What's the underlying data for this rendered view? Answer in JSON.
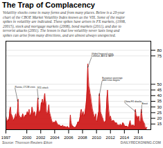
{
  "chart_data": {
    "type": "area",
    "title": "The Trap of Complacency",
    "subtitle": "Volatility shocks come in many forms and from many places. Below is a 20-year\nchart of the CBOE Market Volatility Index known as the VIX. Some of the major\nspikes in volatility are indicated. These spikes have arisen in FX markets, (1998,\n20015), stock and mortgage markets (2008), bond markets (2011), and due to\nterrorist attacks (2001). The lesson is that low volatility never lasts long and\nspikes can arise from many directions, and are almost always unexpected.",
    "source": "Source: Thomson Reuters Eikon",
    "watermark": "DAILYRECKONING.COM",
    "x": [
      1997.0,
      1997.083,
      1997.167,
      1997.25,
      1997.333,
      1997.417,
      1997.5,
      1997.583,
      1997.667,
      1997.75,
      1997.833,
      1997.917,
      1998.0,
      1998.083,
      1998.167,
      1998.25,
      1998.333,
      1998.417,
      1998.5,
      1998.583,
      1998.667,
      1998.75,
      1998.833,
      1998.917,
      1999.0,
      1999.083,
      1999.167,
      1999.25,
      1999.333,
      1999.417,
      1999.5,
      1999.583,
      1999.667,
      1999.75,
      1999.833,
      1999.917,
      2000.0,
      2000.083,
      2000.167,
      2000.25,
      2000.333,
      2000.417,
      2000.5,
      2000.583,
      2000.667,
      2000.75,
      2000.833,
      2000.917,
      2001.0,
      2001.083,
      2001.167,
      2001.25,
      2001.333,
      2001.417,
      2001.5,
      2001.583,
      2001.667,
      2001.75,
      2001.833,
      2001.917,
      2002.0,
      2002.083,
      2002.167,
      2002.25,
      2002.333,
      2002.417,
      2002.5,
      2002.583,
      2002.667,
      2002.75,
      2002.833,
      2002.917,
      2003.0,
      2003.083,
      2003.167,
      2003.25,
      2003.333,
      2003.417,
      2003.5,
      2003.583,
      2003.667,
      2003.75,
      2003.833,
      2003.917,
      2004.0,
      2004.083,
      2004.167,
      2004.25,
      2004.333,
      2004.417,
      2004.5,
      2004.583,
      2004.667,
      2004.75,
      2004.833,
      2004.917,
      2005.0,
      2005.083,
      2005.167,
      2005.25,
      2005.333,
      2005.417,
      2005.5,
      2005.583,
      2005.667,
      2005.75,
      2005.833,
      2005.917,
      2006.0,
      2006.083,
      2006.167,
      2006.25,
      2006.333,
      2006.417,
      2006.5,
      2006.583,
      2006.667,
      2006.75,
      2006.833,
      2006.917,
      2007.0,
      2007.083,
      2007.167,
      2007.25,
      2007.333,
      2007.417,
      2007.5,
      2007.583,
      2007.667,
      2007.75,
      2007.833,
      2007.917,
      2008.0,
      2008.083,
      2008.167,
      2008.25,
      2008.333,
      2008.417,
      2008.5,
      2008.583,
      2008.667,
      2008.75,
      2008.833,
      2008.917,
      2009.0,
      2009.083,
      2009.167,
      2009.25,
      2009.333,
      2009.417,
      2009.5,
      2009.583,
      2009.667,
      2009.75,
      2009.833,
      2009.917,
      2010.0,
      2010.083,
      2010.167,
      2010.25,
      2010.333,
      2010.417,
      2010.5,
      2010.583,
      2010.667,
      2010.75,
      2010.833,
      2010.917,
      2011.0,
      2011.083,
      2011.167,
      2011.25,
      2011.333,
      2011.417,
      2011.5,
      2011.583,
      2011.667,
      2011.75,
      2011.833,
      2011.917,
      2012.0,
      2012.083,
      2012.167,
      2012.25,
      2012.333,
      2012.417,
      2012.5,
      2012.583,
      2012.667,
      2012.75,
      2012.833,
      2012.917,
      2013.0,
      2013.083,
      2013.167,
      2013.25,
      2013.333,
      2013.417,
      2013.5,
      2013.583,
      2013.667,
      2013.75,
      2013.833,
      2013.917,
      2014.0,
      2014.083,
      2014.167,
      2014.25,
      2014.333,
      2014.417,
      2014.5,
      2014.583,
      2014.667,
      2014.75,
      2014.833,
      2014.917,
      2015.0,
      2015.083,
      2015.167,
      2015.25,
      2015.333,
      2015.417,
      2015.5,
      2015.583,
      2015.667,
      2015.75,
      2015.833,
      2015.917,
      2016.0,
      2016.083,
      2016.167,
      2016.25,
      2016.333,
      2016.417,
      2016.5,
      2016.583,
      2016.667,
      2016.75,
      2016.833,
      2016.917,
      2017.0,
      2017.083,
      2017.167,
      2017.25
    ],
    "values": [
      22,
      20,
      18,
      17,
      19,
      18,
      22,
      28,
      30,
      24,
      23,
      22,
      20,
      18,
      19,
      20,
      22,
      24,
      20,
      22,
      26,
      37,
      26,
      22,
      22,
      20,
      21,
      19,
      22,
      24,
      23,
      21,
      20,
      22,
      23,
      22,
      24,
      26,
      25,
      23,
      28,
      24,
      22,
      23,
      25,
      30,
      28,
      24,
      24,
      26,
      25,
      22,
      21,
      24,
      28,
      38,
      30,
      26,
      25,
      26,
      28,
      34,
      33,
      37,
      34,
      32,
      38,
      42,
      36,
      34,
      26,
      24,
      24,
      28,
      32,
      26,
      24,
      22,
      20,
      18,
      17,
      16,
      16,
      17,
      16,
      16,
      18,
      17,
      16,
      15,
      14,
      14,
      14,
      14,
      13,
      13,
      13,
      13,
      14,
      12,
      13,
      12,
      13,
      12,
      12,
      12,
      13,
      12,
      12,
      11,
      12,
      23,
      18,
      15,
      14,
      13,
      13,
      12,
      12,
      12,
      12,
      13,
      14,
      15,
      17,
      16,
      17,
      19,
      22,
      26,
      28,
      22,
      24,
      26,
      24,
      22,
      24,
      28,
      32,
      38,
      48,
      68,
      56,
      48,
      46,
      42,
      40,
      35,
      32,
      28,
      26,
      24,
      22,
      20,
      22,
      24,
      18,
      17,
      20,
      24,
      26,
      42,
      34,
      26,
      24,
      23,
      21,
      20,
      18,
      17,
      16,
      17,
      18,
      28,
      38,
      45,
      36,
      28,
      24,
      20,
      22,
      20,
      18,
      17,
      18,
      18,
      18,
      17,
      16,
      16,
      16,
      16,
      14,
      14,
      14,
      14,
      13,
      15,
      14,
      13,
      14,
      16,
      16,
      15,
      14,
      13,
      13,
      13,
      13,
      13,
      12,
      12,
      14,
      16,
      18,
      15,
      14,
      13,
      14,
      14,
      14,
      13,
      13,
      28,
      24,
      20,
      22,
      20,
      20,
      22,
      18,
      17,
      16,
      28,
      24,
      20,
      18,
      17,
      16,
      15,
      12,
      11,
      12,
      12
    ],
    "color": "#cc1111",
    "xlim": [
      1997,
      2017.8
    ],
    "ylim": [
      10,
      88
    ],
    "xticks": [
      1997,
      2000,
      2002,
      2004,
      2006,
      2008,
      2010,
      2012,
      2014,
      2016
    ],
    "yticks": [
      15,
      20,
      25,
      30,
      35,
      40,
      45,
      50,
      75,
      80
    ],
    "grid": true,
    "annotations": [
      {
        "text": "Russia, LTCM crisis",
        "x": 1998.7,
        "y": 35,
        "text_x": 1998.3,
        "text_y": 47
      },
      {
        "text": "9/11 attack",
        "x": 2001.65,
        "y": 37,
        "text_x": 2001.5,
        "text_y": 46
      },
      {
        "text": "Global financial crisis,\nLehman, AIG & TARP",
        "x": 2008.75,
        "y": 65,
        "text_x": 2009.3,
        "text_y": 74
      },
      {
        "text": "European sovereign\ndebt crisis begins",
        "x": 2010.4,
        "y": 40,
        "text_x": 2010.8,
        "text_y": 53
      },
      {
        "text": "China FX shocks",
        "x": 2015.58,
        "y": 26,
        "text_x": 2014.0,
        "text_y": 34
      },
      {
        "text": "Brexit",
        "x": 2016.45,
        "y": 25,
        "text_x": 2016.5,
        "text_y": 32
      }
    ]
  }
}
